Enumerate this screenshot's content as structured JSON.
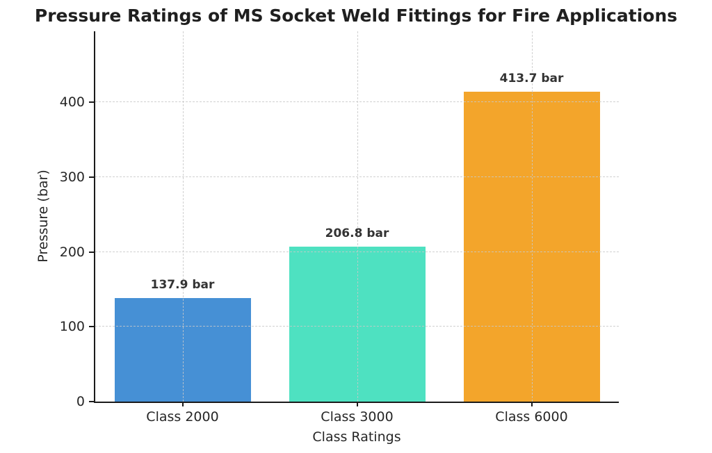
{
  "chart_data": {
    "type": "bar",
    "title": "Pressure Ratings of MS Socket Weld Fittings for Fire Applications",
    "categories": [
      "Class 2000",
      "Class 3000",
      "Class 6000"
    ],
    "values": [
      137.9,
      206.8,
      413.7
    ],
    "value_labels": [
      "137.9 bar",
      "206.8 bar",
      "413.7 bar"
    ],
    "bar_colors": [
      "#4690d5",
      "#4ee1c1",
      "#f3a52b"
    ],
    "xlabel": "Class Ratings",
    "ylabel": "Pressure (bar)",
    "yticks": [
      0,
      100,
      200,
      300,
      400
    ],
    "ylim": [
      0,
      495
    ],
    "legend": "none",
    "grid": {
      "visible": true,
      "style": "dashed",
      "axes": "both",
      "color": "#c8c8c8"
    },
    "colors": {
      "background": "#ffffff",
      "text": "#262626",
      "axis": "#1a1a1a",
      "value_label": "#333333"
    }
  }
}
